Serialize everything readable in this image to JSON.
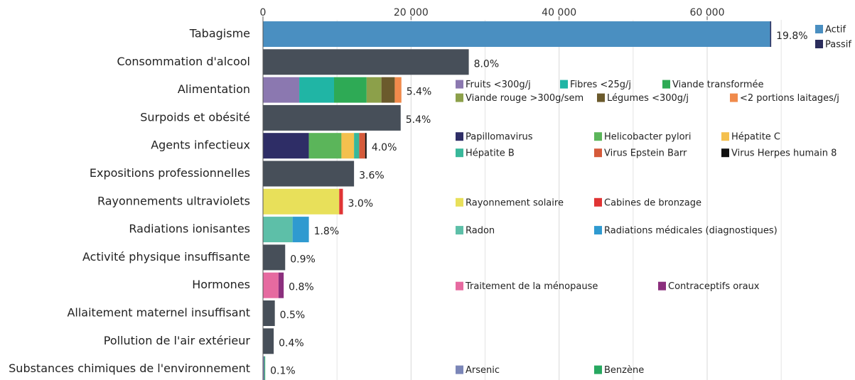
{
  "chart_data": {
    "type": "stacked-barh",
    "xlim": [
      0,
      72000
    ],
    "xticks": [
      {
        "value": 0,
        "label": "0"
      },
      {
        "value": 20000,
        "label": "20 000"
      },
      {
        "value": 40000,
        "label": "40 000"
      },
      {
        "value": 60000,
        "label": "60 000"
      }
    ],
    "minor_grid": [
      10000,
      30000,
      50000,
      70000
    ],
    "grid": true,
    "bars": [
      {
        "label": "Tabagisme",
        "values": [
          68500,
          150
        ],
        "names": [
          "Actif",
          "Passif"
        ],
        "colors": [
          "#4a8fc1",
          "#2b2d5c"
        ],
        "value_label": "19.8%"
      },
      {
        "label": "Consommation d'alcool",
        "values": [
          27800
        ],
        "colors": [
          "#474f59"
        ],
        "value_label": "8.0%"
      },
      {
        "label": "Alimentation",
        "values": [
          4900,
          4700,
          4400,
          2000,
          1800,
          900
        ],
        "names": [
          "Fruits <300g/j",
          "Fibres <25g/j",
          "Viande transformée",
          "Viande rouge >300g/sem",
          "Légumes <300g/j",
          "<2 portions laitages/j"
        ],
        "colors": [
          "#8b78b0",
          "#20b5a5",
          "#2eaa55",
          "#8ca04a",
          "#6b5a2c",
          "#f08a4b"
        ],
        "value_label": "5.4%"
      },
      {
        "label": "Surpoids et obésité",
        "values": [
          18600
        ],
        "colors": [
          "#474f59"
        ],
        "value_label": "5.4%"
      },
      {
        "label": "Agents infectieux",
        "values": [
          6200,
          4400,
          1700,
          700,
          800,
          200
        ],
        "names": [
          "Papillomavirus",
          "Helicobacter pylori",
          "Hépatite C",
          "Hépatite B",
          "Virus Epstein Barr",
          "Virus Herpes humain 8"
        ],
        "colors": [
          "#2e2d66",
          "#5bb55a",
          "#f4c04e",
          "#38b89a",
          "#d55a3a",
          "#111111"
        ],
        "value_label": "4.0%"
      },
      {
        "label": "Expositions professionnelles",
        "values": [
          12300
        ],
        "colors": [
          "#474f59"
        ],
        "value_label": "3.6%"
      },
      {
        "label": "Rayonnements ultraviolets",
        "values": [
          10300,
          500
        ],
        "names": [
          "Rayonnement solaire",
          "Cabines de bronzage"
        ],
        "colors": [
          "#e8e05a",
          "#e03434"
        ],
        "value_label": "3.0%"
      },
      {
        "label": "Radiations ionisantes",
        "values": [
          4000,
          2200
        ],
        "names": [
          "Radon",
          "Radiations médicales (diagnostiques)"
        ],
        "colors": [
          "#5dbfa8",
          "#2f9ad0"
        ],
        "value_label": "1.8%"
      },
      {
        "label": "Activité physique insuffisante",
        "values": [
          3000
        ],
        "colors": [
          "#474f59"
        ],
        "value_label": "0.9%"
      },
      {
        "label": "Hormones",
        "values": [
          2100,
          700
        ],
        "names": [
          "Traitement de la ménopause",
          "Contraceptifs oraux"
        ],
        "colors": [
          "#e66aa0",
          "#8b2f7d"
        ],
        "value_label": "0.8%"
      },
      {
        "label": "Allaitement maternel insuffisant",
        "values": [
          1600
        ],
        "colors": [
          "#474f59"
        ],
        "value_label": "0.5%"
      },
      {
        "label": "Pollution de l'air extérieur",
        "values": [
          1450
        ],
        "colors": [
          "#474f59"
        ],
        "value_label": "0.4%"
      },
      {
        "label": "Substances chimiques de l'environnement",
        "values": [
          200,
          100
        ],
        "names": [
          "Arsenic",
          "Benzène"
        ],
        "colors": [
          "#7b86b8",
          "#27a860"
        ],
        "value_label": "0.1%"
      }
    ]
  }
}
